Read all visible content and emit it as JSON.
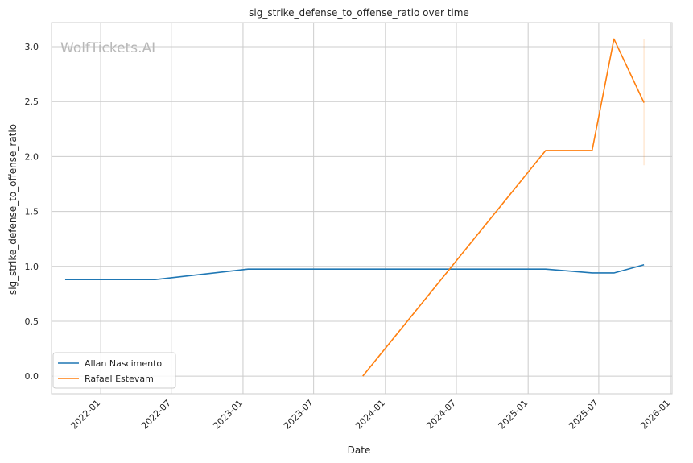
{
  "chart_data": {
    "type": "line",
    "title": "sig_strike_defense_to_offense_ratio over time",
    "xlabel": "Date",
    "ylabel": "sig_strike_defense_to_offense_ratio",
    "watermark": "WolfTickets.AI",
    "x_ticks": [
      "2022-01",
      "2022-07",
      "2023-01",
      "2023-07",
      "2024-01",
      "2024-07",
      "2025-01",
      "2025-07",
      "2026-01"
    ],
    "y_ticks": [
      "0.0",
      "0.5",
      "1.0",
      "1.5",
      "2.0",
      "2.5",
      "3.0"
    ],
    "xlim": [
      "2021-08-28",
      "2026-01-05"
    ],
    "ylim": [
      -0.16,
      3.22
    ],
    "grid": true,
    "legend_position": "lower-left",
    "series": [
      {
        "name": "Allan Nascimento",
        "color": "#1f77b4",
        "points": [
          {
            "x": "2021-10-02",
            "y": 0.88
          },
          {
            "x": "2022-05-21",
            "y": 0.88
          },
          {
            "x": "2023-01-14",
            "y": 0.975
          },
          {
            "x": "2025-02-15",
            "y": 0.975
          },
          {
            "x": "2025-06-14",
            "y": 0.94
          },
          {
            "x": "2025-08-09",
            "y": 0.94
          },
          {
            "x": "2025-10-25",
            "y": 1.015
          }
        ]
      },
      {
        "name": "Rafael Estevam",
        "color": "#ff7f0e",
        "points": [
          {
            "x": "2023-11-04",
            "y": 0.0
          },
          {
            "x": "2025-02-15",
            "y": 2.055
          },
          {
            "x": "2025-06-14",
            "y": 2.055
          },
          {
            "x": "2025-08-09",
            "y": 3.07
          },
          {
            "x": "2025-10-25",
            "y": 2.49
          }
        ],
        "error_band": {
          "x": "2025-10-25",
          "low": 1.92,
          "high": 3.07
        }
      }
    ]
  }
}
